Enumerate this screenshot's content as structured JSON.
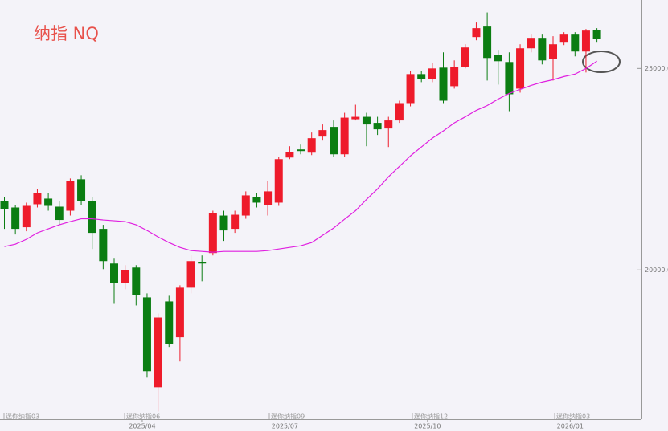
{
  "chart_data": {
    "type": "candlestick",
    "title": "纳指 NQ",
    "up_color": "#ee1b2b",
    "down_color": "#0b7d12",
    "categories": [
      null,
      null,
      null,
      null,
      null,
      null,
      null,
      null,
      null,
      null,
      null,
      null,
      null,
      "2025/04",
      null,
      null,
      null,
      null,
      null,
      null,
      null,
      null,
      null,
      null,
      null,
      null,
      "2025/07",
      null,
      null,
      null,
      null,
      null,
      null,
      null,
      null,
      null,
      null,
      null,
      null,
      "2025/10",
      null,
      null,
      null,
      null,
      null,
      null,
      null,
      null,
      null,
      null,
      null,
      null,
      "2026/01",
      null,
      null
    ],
    "open": [
      21710,
      21550,
      21060,
      21630,
      21770,
      21570,
      21470,
      22250,
      21710,
      21020,
      20160,
      19680,
      20060,
      19320,
      17090,
      19220,
      18330,
      19560,
      20200,
      20420,
      21350,
      21020,
      21350,
      21810,
      21610,
      21670,
      22790,
      22990,
      22910,
      23310,
      23550,
      22870,
      23740,
      23800,
      23650,
      23510,
      23710,
      24140,
      24860,
      24740,
      25020,
      24560,
      25040,
      25780,
      26040,
      25340,
      25160,
      24500,
      25500,
      25760,
      25240,
      25660,
      25860,
      25420,
      25960
    ],
    "high": [
      21810,
      21610,
      21670,
      22010,
      21910,
      21710,
      22270,
      22350,
      21810,
      21120,
      20280,
      20120,
      20120,
      19420,
      18920,
      19360,
      19620,
      20360,
      20360,
      21470,
      21470,
      21470,
      21950,
      21910,
      22210,
      22810,
      23070,
      23110,
      23410,
      23610,
      23710,
      23900,
      24100,
      23900,
      23800,
      23800,
      24200,
      24940,
      24940,
      25140,
      25400,
      25200,
      25600,
      26140,
      26390,
      25460,
      25400,
      25600,
      25860,
      25860,
      25800,
      25900,
      25900,
      25980,
      26000
    ],
    "low": [
      21020,
      20880,
      20960,
      21550,
      21470,
      21120,
      21350,
      21610,
      20520,
      20020,
      19160,
      19520,
      19120,
      17330,
      16490,
      18090,
      17730,
      19420,
      19720,
      20360,
      20720,
      20920,
      21270,
      21550,
      21350,
      21590,
      22750,
      22870,
      22850,
      23210,
      22810,
      22810,
      23710,
      23070,
      23350,
      23050,
      23650,
      24060,
      24660,
      24660,
      24140,
      24500,
      25000,
      25700,
      24700,
      24600,
      23940,
      24400,
      25400,
      25100,
      24700,
      25580,
      25300,
      24900,
      25660
    ],
    "close": [
      21510,
      21020,
      21590,
      21910,
      21590,
      21240,
      22210,
      21710,
      20920,
      20220,
      19680,
      20000,
      19380,
      17490,
      18820,
      18170,
      19560,
      20220,
      20160,
      21410,
      20980,
      21370,
      21850,
      21670,
      21950,
      22750,
      22930,
      22950,
      23270,
      23470,
      22870,
      23780,
      23800,
      23610,
      23490,
      23710,
      24140,
      24860,
      24740,
      25000,
      24200,
      25040,
      25520,
      26000,
      25260,
      25180,
      24360,
      25500,
      25760,
      25200,
      25600,
      25860,
      25420,
      25940,
      25740
    ],
    "moving_average": {
      "color": "#e020e0",
      "values": [
        20580,
        20640,
        20760,
        20920,
        21020,
        21120,
        21200,
        21270,
        21270,
        21240,
        21220,
        21200,
        21120,
        20980,
        20820,
        20680,
        20560,
        20480,
        20460,
        20440,
        20460,
        20460,
        20460,
        20460,
        20480,
        20520,
        20560,
        20600,
        20680,
        20860,
        21040,
        21260,
        21470,
        21750,
        22010,
        22310,
        22570,
        22830,
        23050,
        23270,
        23450,
        23650,
        23800,
        23960,
        24080,
        24240,
        24380,
        24480,
        24580,
        24660,
        24720,
        24800,
        24860,
        25000,
        25180
      ]
    },
    "contract_labels": [
      "迷你纳指03",
      "迷你纳指06",
      "迷你纳指09",
      "迷你纳指12",
      "迷你纳指03"
    ],
    "ylim": [
      16300,
      26700
    ],
    "yticks": [
      {
        "value": 20000,
        "label": "20000.0"
      },
      {
        "value": 25000,
        "label": "25000.0"
      }
    ]
  }
}
